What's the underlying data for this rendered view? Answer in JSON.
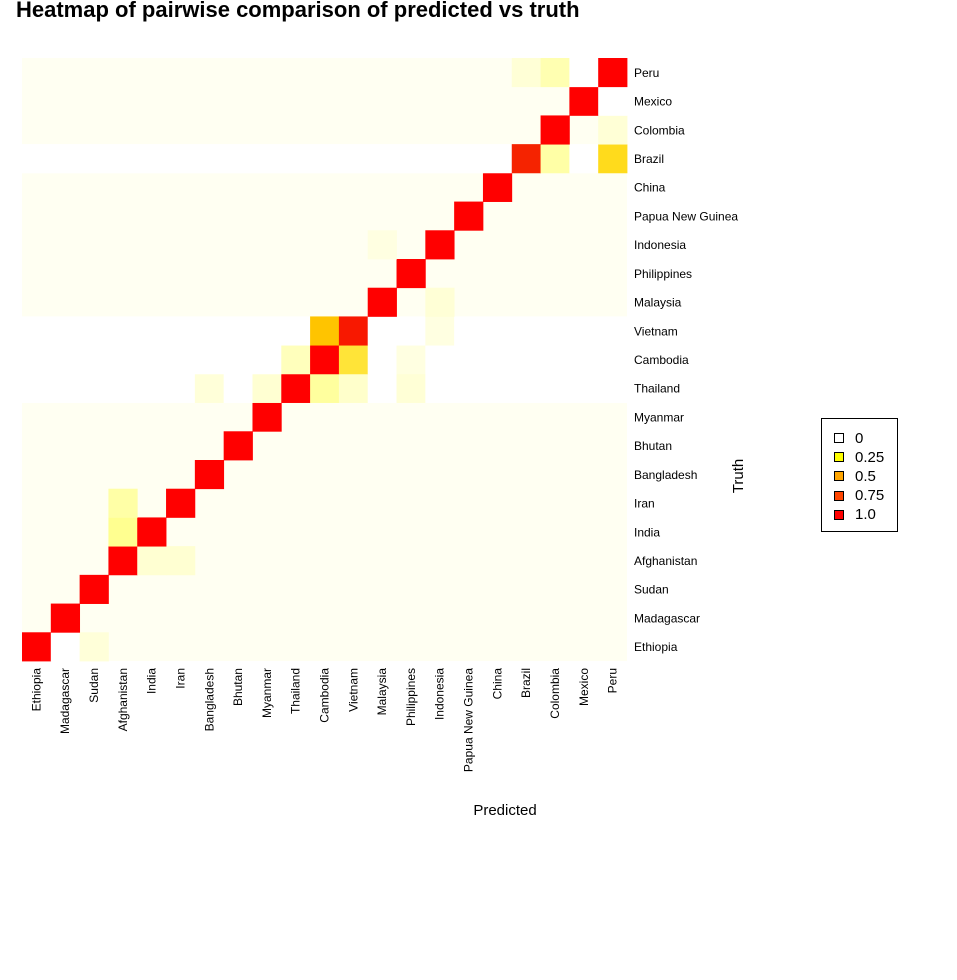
{
  "chart_data": {
    "type": "heatmap",
    "title": "Heatmap of pairwise comparison of predicted vs truth",
    "xlabel": "Predicted",
    "ylabel": "Truth",
    "categories": [
      "Ethiopia",
      "Madagascar",
      "Sudan",
      "Afghanistan",
      "India",
      "Iran",
      "Bangladesh",
      "Bhutan",
      "Myanmar",
      "Thailand",
      "Cambodia",
      "Vietnam",
      "Malaysia",
      "Philippines",
      "Indonesia",
      "Papua New Guinea",
      "China",
      "Brazil",
      "Colombia",
      "Mexico",
      "Peru"
    ],
    "legend": {
      "placement": "right",
      "entries": [
        {
          "label": "0",
          "color": "#FFFFFF"
        },
        {
          "label": "0.25",
          "color": "#FFFF00"
        },
        {
          "label": "0.5",
          "color": "#FFA500"
        },
        {
          "label": "0.75",
          "color": "#FF4500"
        },
        {
          "label": "1.0",
          "color": "#FF0000"
        }
      ]
    },
    "colors": {
      "background": "#FFFFF2",
      "low": "#FFFFE8",
      "high": "#FF0000"
    },
    "values": [
      {
        "truth": "Ethiopia",
        "predicted": "Ethiopia",
        "value": 1.0
      },
      {
        "truth": "Ethiopia",
        "predicted": "Madagascar",
        "value": 0.0
      },
      {
        "truth": "Ethiopia",
        "predicted": "Sudan",
        "value": 0.04
      },
      {
        "truth": "Madagascar",
        "predicted": "Madagascar",
        "value": 1.0
      },
      {
        "truth": "Sudan",
        "predicted": "Sudan",
        "value": 1.0
      },
      {
        "truth": "Afghanistan",
        "predicted": "Afghanistan",
        "value": 1.0
      },
      {
        "truth": "Afghanistan",
        "predicted": "India",
        "value": 0.06
      },
      {
        "truth": "Afghanistan",
        "predicted": "Iran",
        "value": 0.06
      },
      {
        "truth": "India",
        "predicted": "Afghanistan",
        "value": 0.24
      },
      {
        "truth": "India",
        "predicted": "India",
        "value": 1.0
      },
      {
        "truth": "Iran",
        "predicted": "Afghanistan",
        "value": 0.18
      },
      {
        "truth": "Iran",
        "predicted": "Iran",
        "value": 1.0
      },
      {
        "truth": "Bangladesh",
        "predicted": "Bangladesh",
        "value": 1.0
      },
      {
        "truth": "Bhutan",
        "predicted": "Bhutan",
        "value": 1.0
      },
      {
        "truth": "Myanmar",
        "predicted": "Myanmar",
        "value": 1.0
      },
      {
        "truth": "Thailand",
        "predicted": "Ethiopia",
        "value": 0.0
      },
      {
        "truth": "Thailand",
        "predicted": "Madagascar",
        "value": 0.0
      },
      {
        "truth": "Thailand",
        "predicted": "Sudan",
        "value": 0.0
      },
      {
        "truth": "Thailand",
        "predicted": "Afghanistan",
        "value": 0.0
      },
      {
        "truth": "Thailand",
        "predicted": "India",
        "value": 0.0
      },
      {
        "truth": "Thailand",
        "predicted": "Iran",
        "value": 0.0
      },
      {
        "truth": "Thailand",
        "predicted": "Bangladesh",
        "value": 0.04
      },
      {
        "truth": "Thailand",
        "predicted": "Bhutan",
        "value": 0.0
      },
      {
        "truth": "Thailand",
        "predicted": "Myanmar",
        "value": 0.06
      },
      {
        "truth": "Thailand",
        "predicted": "Thailand",
        "value": 1.0
      },
      {
        "truth": "Thailand",
        "predicted": "Cambodia",
        "value": 0.2
      },
      {
        "truth": "Thailand",
        "predicted": "Vietnam",
        "value": 0.08
      },
      {
        "truth": "Thailand",
        "predicted": "Malaysia",
        "value": 0.0
      },
      {
        "truth": "Thailand",
        "predicted": "Philippines",
        "value": 0.05
      },
      {
        "truth": "Thailand",
        "predicted": "Indonesia",
        "value": 0.0
      },
      {
        "truth": "Thailand",
        "predicted": "Papua New Guinea",
        "value": 0.0
      },
      {
        "truth": "Thailand",
        "predicted": "China",
        "value": 0.0
      },
      {
        "truth": "Thailand",
        "predicted": "Brazil",
        "value": 0.0
      },
      {
        "truth": "Thailand",
        "predicted": "Colombia",
        "value": 0.0
      },
      {
        "truth": "Thailand",
        "predicted": "Mexico",
        "value": 0.0
      },
      {
        "truth": "Thailand",
        "predicted": "Peru",
        "value": 0.0
      },
      {
        "truth": "Cambodia",
        "predicted": "Ethiopia",
        "value": 0.0
      },
      {
        "truth": "Cambodia",
        "predicted": "Madagascar",
        "value": 0.0
      },
      {
        "truth": "Cambodia",
        "predicted": "Sudan",
        "value": 0.0
      },
      {
        "truth": "Cambodia",
        "predicted": "Afghanistan",
        "value": 0.0
      },
      {
        "truth": "Cambodia",
        "predicted": "India",
        "value": 0.0
      },
      {
        "truth": "Cambodia",
        "predicted": "Iran",
        "value": 0.0
      },
      {
        "truth": "Cambodia",
        "predicted": "Bangladesh",
        "value": 0.0
      },
      {
        "truth": "Cambodia",
        "predicted": "Bhutan",
        "value": 0.0
      },
      {
        "truth": "Cambodia",
        "predicted": "Myanmar",
        "value": 0.0
      },
      {
        "truth": "Cambodia",
        "predicted": "Thailand",
        "value": 0.12
      },
      {
        "truth": "Cambodia",
        "predicted": "Cambodia",
        "value": 1.0
      },
      {
        "truth": "Cambodia",
        "predicted": "Vietnam",
        "value": 0.4
      },
      {
        "truth": "Cambodia",
        "predicted": "Malaysia",
        "value": 0.0
      },
      {
        "truth": "Cambodia",
        "predicted": "Philippines",
        "value": 0.02
      },
      {
        "truth": "Cambodia",
        "predicted": "Indonesia",
        "value": 0.0
      },
      {
        "truth": "Cambodia",
        "predicted": "Papua New Guinea",
        "value": 0.0
      },
      {
        "truth": "Cambodia",
        "predicted": "China",
        "value": 0.0
      },
      {
        "truth": "Cambodia",
        "predicted": "Brazil",
        "value": 0.0
      },
      {
        "truth": "Cambodia",
        "predicted": "Colombia",
        "value": 0.0
      },
      {
        "truth": "Cambodia",
        "predicted": "Mexico",
        "value": 0.0
      },
      {
        "truth": "Cambodia",
        "predicted": "Peru",
        "value": 0.0
      },
      {
        "truth": "Vietnam",
        "predicted": "Ethiopia",
        "value": 0.0
      },
      {
        "truth": "Vietnam",
        "predicted": "Madagascar",
        "value": 0.0
      },
      {
        "truth": "Vietnam",
        "predicted": "Sudan",
        "value": 0.0
      },
      {
        "truth": "Vietnam",
        "predicted": "Afghanistan",
        "value": 0.0
      },
      {
        "truth": "Vietnam",
        "predicted": "India",
        "value": 0.0
      },
      {
        "truth": "Vietnam",
        "predicted": "Iran",
        "value": 0.0
      },
      {
        "truth": "Vietnam",
        "predicted": "Bangladesh",
        "value": 0.0
      },
      {
        "truth": "Vietnam",
        "predicted": "Bhutan",
        "value": 0.0
      },
      {
        "truth": "Vietnam",
        "predicted": "Myanmar",
        "value": 0.0
      },
      {
        "truth": "Vietnam",
        "predicted": "Thailand",
        "value": 0.0
      },
      {
        "truth": "Vietnam",
        "predicted": "Cambodia",
        "value": 0.55
      },
      {
        "truth": "Vietnam",
        "predicted": "Vietnam",
        "value": 0.93
      },
      {
        "truth": "Vietnam",
        "predicted": "Malaysia",
        "value": 0.0
      },
      {
        "truth": "Vietnam",
        "predicted": "Philippines",
        "value": 0.0
      },
      {
        "truth": "Vietnam",
        "predicted": "Indonesia",
        "value": 0.02
      },
      {
        "truth": "Vietnam",
        "predicted": "Papua New Guinea",
        "value": 0.0
      },
      {
        "truth": "Vietnam",
        "predicted": "China",
        "value": 0.0
      },
      {
        "truth": "Vietnam",
        "predicted": "Brazil",
        "value": 0.0
      },
      {
        "truth": "Vietnam",
        "predicted": "Colombia",
        "value": 0.0
      },
      {
        "truth": "Vietnam",
        "predicted": "Mexico",
        "value": 0.0
      },
      {
        "truth": "Vietnam",
        "predicted": "Peru",
        "value": 0.0
      },
      {
        "truth": "Malaysia",
        "predicted": "Malaysia",
        "value": 1.0
      },
      {
        "truth": "Malaysia",
        "predicted": "Indonesia",
        "value": 0.05
      },
      {
        "truth": "Philippines",
        "predicted": "Philippines",
        "value": 1.0
      },
      {
        "truth": "Indonesia",
        "predicted": "Malaysia",
        "value": 0.02
      },
      {
        "truth": "Indonesia",
        "predicted": "Indonesia",
        "value": 1.0
      },
      {
        "truth": "Papua New Guinea",
        "predicted": "Papua New Guinea",
        "value": 1.0
      },
      {
        "truth": "China",
        "predicted": "China",
        "value": 1.0
      },
      {
        "truth": "Brazil",
        "predicted": "Ethiopia",
        "value": 0.0
      },
      {
        "truth": "Brazil",
        "predicted": "Madagascar",
        "value": 0.0
      },
      {
        "truth": "Brazil",
        "predicted": "Sudan",
        "value": 0.0
      },
      {
        "truth": "Brazil",
        "predicted": "Afghanistan",
        "value": 0.0
      },
      {
        "truth": "Brazil",
        "predicted": "India",
        "value": 0.0
      },
      {
        "truth": "Brazil",
        "predicted": "Iran",
        "value": 0.0
      },
      {
        "truth": "Brazil",
        "predicted": "Bangladesh",
        "value": 0.0
      },
      {
        "truth": "Brazil",
        "predicted": "Bhutan",
        "value": 0.0
      },
      {
        "truth": "Brazil",
        "predicted": "Myanmar",
        "value": 0.0
      },
      {
        "truth": "Brazil",
        "predicted": "Thailand",
        "value": 0.0
      },
      {
        "truth": "Brazil",
        "predicted": "Cambodia",
        "value": 0.0
      },
      {
        "truth": "Brazil",
        "predicted": "Vietnam",
        "value": 0.0
      },
      {
        "truth": "Brazil",
        "predicted": "Malaysia",
        "value": 0.0
      },
      {
        "truth": "Brazil",
        "predicted": "Philippines",
        "value": 0.0
      },
      {
        "truth": "Brazil",
        "predicted": "Indonesia",
        "value": 0.0
      },
      {
        "truth": "Brazil",
        "predicted": "Papua New Guinea",
        "value": 0.0
      },
      {
        "truth": "Brazil",
        "predicted": "China",
        "value": 0.0
      },
      {
        "truth": "Brazil",
        "predicted": "Brazil",
        "value": 0.9
      },
      {
        "truth": "Brazil",
        "predicted": "Colombia",
        "value": 0.18
      },
      {
        "truth": "Brazil",
        "predicted": "Mexico",
        "value": 0.0
      },
      {
        "truth": "Brazil",
        "predicted": "Peru",
        "value": 0.45
      },
      {
        "truth": "Colombia",
        "predicted": "Colombia",
        "value": 1.0
      },
      {
        "truth": "Colombia",
        "predicted": "Peru",
        "value": 0.05
      },
      {
        "truth": "Mexico",
        "predicted": "Mexico",
        "value": 1.0
      },
      {
        "truth": "Mexico",
        "predicted": "Peru",
        "value": 0.0
      },
      {
        "truth": "Peru",
        "predicted": "Brazil",
        "value": 0.05
      },
      {
        "truth": "Peru",
        "predicted": "Colombia",
        "value": 0.15
      },
      {
        "truth": "Peru",
        "predicted": "Mexico",
        "value": 0.0
      },
      {
        "truth": "Peru",
        "predicted": "Peru",
        "value": 1.0
      }
    ]
  }
}
